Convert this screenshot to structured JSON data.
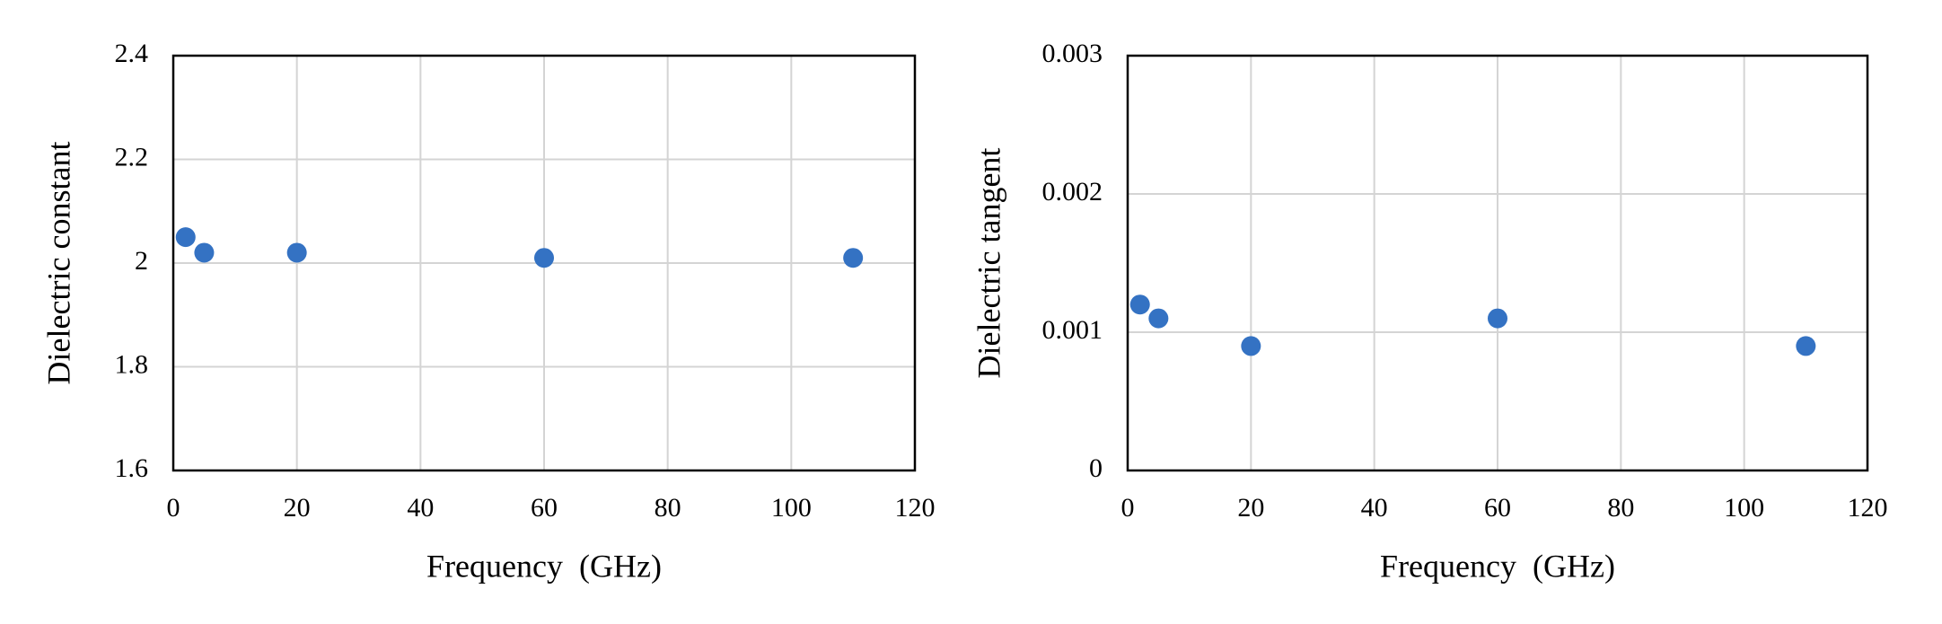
{
  "chart_data": [
    {
      "type": "scatter",
      "x_label": "Frequency  (GHz)",
      "y_label": "Dielectric constant",
      "x": [
        2,
        5,
        20,
        60,
        110
      ],
      "values": [
        2.05,
        2.02,
        2.02,
        2.01,
        2.01
      ],
      "color": "#3472c3",
      "xlim": [
        0,
        120
      ],
      "xticks": [
        0,
        20,
        40,
        60,
        80,
        100,
        120
      ],
      "ylim": [
        1.6,
        2.4
      ],
      "yticks": [
        1.6,
        1.8,
        2,
        2.2,
        2.4
      ],
      "grid": true
    },
    {
      "type": "scatter",
      "x_label": "Frequency  (GHz)",
      "y_label": "Dielectric tangent",
      "x": [
        2,
        5,
        20,
        60,
        110
      ],
      "values": [
        0.0012,
        0.0011,
        0.0009,
        0.0011,
        0.0009
      ],
      "color": "#3472c3",
      "xlim": [
        0,
        120
      ],
      "xticks": [
        0,
        20,
        40,
        60,
        80,
        100,
        120
      ],
      "ylim": [
        0,
        0.003
      ],
      "yticks": [
        0,
        0.001,
        0.002,
        0.003
      ],
      "grid": true
    }
  ]
}
